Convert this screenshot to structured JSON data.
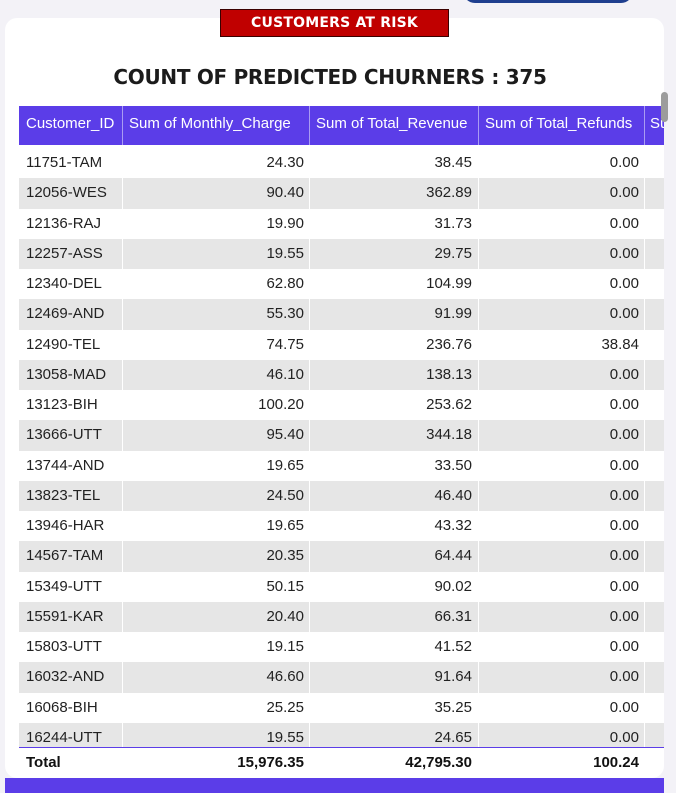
{
  "banner": {
    "label": "CUSTOMERS AT RISK"
  },
  "title": {
    "text": "COUNT OF PREDICTED CHURNERS : 375"
  },
  "table": {
    "columns": [
      "Customer_ID",
      "Sum of Monthly_Charge",
      "Sum of Total_Revenue",
      "Sum of Total_Refunds",
      "Su"
    ],
    "rows": [
      {
        "id": "11751-TAM",
        "monthly": "24.30",
        "revenue": "38.45",
        "refunds": "0.00"
      },
      {
        "id": "12056-WES",
        "monthly": "90.40",
        "revenue": "362.89",
        "refunds": "0.00"
      },
      {
        "id": "12136-RAJ",
        "monthly": "19.90",
        "revenue": "31.73",
        "refunds": "0.00"
      },
      {
        "id": "12257-ASS",
        "monthly": "19.55",
        "revenue": "29.75",
        "refunds": "0.00"
      },
      {
        "id": "12340-DEL",
        "monthly": "62.80",
        "revenue": "104.99",
        "refunds": "0.00"
      },
      {
        "id": "12469-AND",
        "monthly": "55.30",
        "revenue": "91.99",
        "refunds": "0.00"
      },
      {
        "id": "12490-TEL",
        "monthly": "74.75",
        "revenue": "236.76",
        "refunds": "38.84"
      },
      {
        "id": "13058-MAD",
        "monthly": "46.10",
        "revenue": "138.13",
        "refunds": "0.00"
      },
      {
        "id": "13123-BIH",
        "monthly": "100.20",
        "revenue": "253.62",
        "refunds": "0.00"
      },
      {
        "id": "13666-UTT",
        "monthly": "95.40",
        "revenue": "344.18",
        "refunds": "0.00"
      },
      {
        "id": "13744-AND",
        "monthly": "19.65",
        "revenue": "33.50",
        "refunds": "0.00"
      },
      {
        "id": "13823-TEL",
        "monthly": "24.50",
        "revenue": "46.40",
        "refunds": "0.00"
      },
      {
        "id": "13946-HAR",
        "monthly": "19.65",
        "revenue": "43.32",
        "refunds": "0.00"
      },
      {
        "id": "14567-TAM",
        "monthly": "20.35",
        "revenue": "64.44",
        "refunds": "0.00"
      },
      {
        "id": "15349-UTT",
        "monthly": "50.15",
        "revenue": "90.02",
        "refunds": "0.00"
      },
      {
        "id": "15591-KAR",
        "monthly": "20.40",
        "revenue": "66.31",
        "refunds": "0.00"
      },
      {
        "id": "15803-UTT",
        "monthly": "19.15",
        "revenue": "41.52",
        "refunds": "0.00"
      },
      {
        "id": "16032-AND",
        "monthly": "46.60",
        "revenue": "91.64",
        "refunds": "0.00"
      },
      {
        "id": "16068-BIH",
        "monthly": "25.25",
        "revenue": "35.25",
        "refunds": "0.00"
      },
      {
        "id": "16244-UTT",
        "monthly": "19.55",
        "revenue": "24.65",
        "refunds": "0.00"
      }
    ],
    "total": {
      "label": "Total",
      "monthly": "15,976.35",
      "revenue": "42,795.30",
      "refunds": "100.24"
    }
  },
  "colors": {
    "header_bg": "#5b3de8",
    "banner_bg": "#c00000",
    "alt_row_bg": "#e6e6e6"
  }
}
